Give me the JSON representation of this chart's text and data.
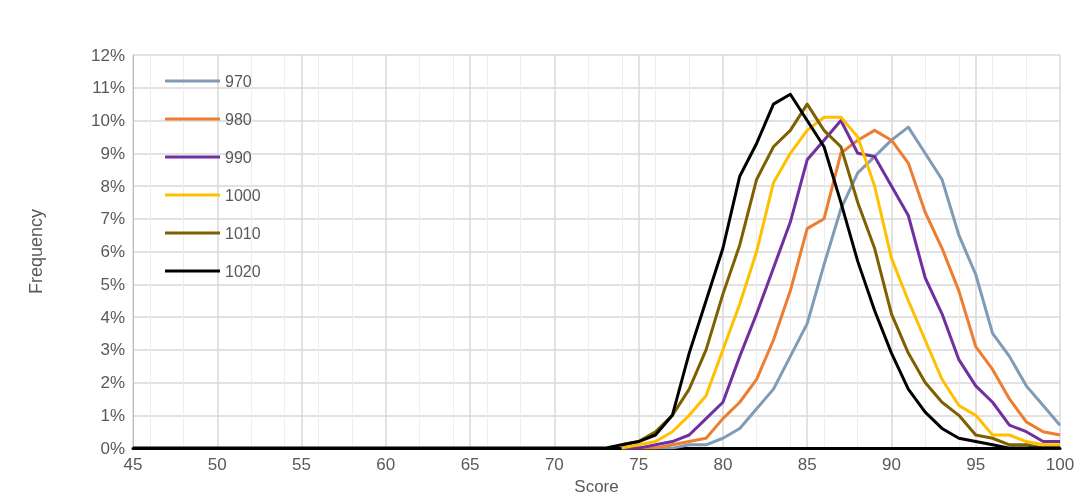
{
  "chart_data": {
    "type": "line",
    "xlabel": "Score",
    "ylabel": "Frequency",
    "x": [
      45,
      46,
      47,
      48,
      49,
      50,
      51,
      52,
      53,
      54,
      55,
      56,
      57,
      58,
      59,
      60,
      61,
      62,
      63,
      64,
      65,
      66,
      67,
      68,
      69,
      70,
      71,
      72,
      73,
      74,
      75,
      76,
      77,
      78,
      79,
      80,
      81,
      82,
      83,
      84,
      85,
      86,
      87,
      88,
      89,
      90,
      91,
      92,
      93,
      94,
      95,
      96,
      97,
      98,
      99,
      100
    ],
    "series": [
      {
        "name": "970",
        "color": "#7f9bb5",
        "values": [
          null,
          null,
          null,
          null,
          null,
          null,
          null,
          null,
          null,
          null,
          null,
          null,
          null,
          null,
          null,
          null,
          null,
          null,
          null,
          null,
          null,
          null,
          null,
          null,
          null,
          null,
          null,
          null,
          null,
          0,
          0,
          0,
          0,
          0.1,
          0.1,
          0.3,
          0.6,
          1.2,
          1.8,
          2.8,
          3.8,
          5.6,
          7.3,
          8.4,
          8.9,
          9.4,
          9.8,
          9.0,
          8.2,
          6.5,
          5.3,
          3.5,
          2.8,
          1.9,
          1.3,
          0.7
        ]
      },
      {
        "name": "980",
        "color": "#ed7d31",
        "values": [
          null,
          null,
          null,
          null,
          null,
          null,
          null,
          null,
          null,
          null,
          null,
          null,
          null,
          null,
          null,
          null,
          null,
          null,
          null,
          null,
          null,
          null,
          null,
          null,
          null,
          null,
          null,
          null,
          null,
          0,
          0,
          0,
          0.1,
          0.2,
          0.3,
          0.9,
          1.4,
          2.1,
          3.3,
          4.8,
          6.7,
          7.0,
          9.0,
          9.4,
          9.7,
          9.4,
          8.7,
          7.2,
          6.1,
          4.8,
          3.1,
          2.4,
          1.5,
          0.8,
          0.5,
          0.4
        ]
      },
      {
        "name": "990",
        "color": "#7030a0",
        "values": [
          null,
          null,
          null,
          null,
          null,
          null,
          null,
          null,
          null,
          null,
          null,
          null,
          null,
          null,
          null,
          null,
          null,
          null,
          null,
          null,
          null,
          null,
          null,
          null,
          null,
          null,
          null,
          null,
          null,
          0,
          0,
          0.1,
          0.2,
          0.4,
          0.9,
          1.4,
          2.8,
          4.1,
          5.5,
          6.9,
          8.8,
          9.4,
          10.0,
          9.0,
          8.9,
          8.0,
          7.1,
          5.2,
          4.1,
          2.7,
          1.9,
          1.4,
          0.7,
          0.5,
          0.2,
          0.2
        ]
      },
      {
        "name": "1000",
        "color": "#ffc000",
        "values": [
          null,
          null,
          null,
          null,
          null,
          null,
          null,
          null,
          null,
          null,
          null,
          null,
          null,
          null,
          null,
          null,
          null,
          null,
          null,
          null,
          null,
          null,
          null,
          null,
          null,
          null,
          null,
          null,
          null,
          0,
          0.1,
          0.2,
          0.5,
          1.0,
          1.6,
          3.0,
          4.4,
          6.0,
          8.1,
          9.0,
          9.7,
          10.1,
          10.1,
          9.5,
          8.0,
          5.8,
          4.5,
          3.3,
          2.1,
          1.3,
          1.0,
          0.4,
          0.4,
          0.2,
          0.1,
          0.1
        ]
      },
      {
        "name": "1010",
        "color": "#7f6000",
        "values": [
          null,
          null,
          null,
          null,
          null,
          null,
          null,
          null,
          null,
          null,
          null,
          null,
          null,
          null,
          null,
          null,
          null,
          null,
          null,
          null,
          null,
          null,
          null,
          null,
          null,
          null,
          null,
          null,
          null,
          0.1,
          0.2,
          0.5,
          1.0,
          1.8,
          3.0,
          4.7,
          6.2,
          8.2,
          9.2,
          9.7,
          10.5,
          9.7,
          9.2,
          7.5,
          6.1,
          4.1,
          2.9,
          2.0,
          1.4,
          1.0,
          0.4,
          0.3,
          0.1,
          0.1,
          0,
          0
        ]
      },
      {
        "name": "1020",
        "color": "#000000",
        "values": [
          0,
          0,
          0,
          0,
          0,
          0,
          0,
          0,
          0,
          0,
          0,
          0,
          0,
          0,
          0,
          0,
          0,
          0,
          0,
          0,
          0,
          0,
          0,
          0,
          0,
          0,
          0,
          0,
          0,
          0.1,
          0.2,
          0.4,
          1.0,
          2.9,
          4.5,
          6.1,
          8.3,
          9.3,
          10.5,
          10.8,
          10.0,
          9.2,
          7.5,
          5.7,
          4.2,
          2.9,
          1.8,
          1.1,
          0.6,
          0.3,
          0.2,
          0.1,
          0,
          0,
          0,
          0
        ]
      }
    ],
    "xlim": [
      45,
      100
    ],
    "xticks": [
      45,
      50,
      55,
      60,
      65,
      70,
      75,
      80,
      85,
      90,
      95,
      100
    ],
    "ylim": [
      0,
      12
    ],
    "yticks": [
      {
        "value": 0,
        "label": "0%"
      },
      {
        "value": 1,
        "label": "1%"
      },
      {
        "value": 2,
        "label": "2%"
      },
      {
        "value": 3,
        "label": "3%"
      },
      {
        "value": 4,
        "label": "4%"
      },
      {
        "value": 5,
        "label": "5%"
      },
      {
        "value": 6,
        "label": "6%"
      },
      {
        "value": 7,
        "label": "7%"
      },
      {
        "value": 8,
        "label": "8%"
      },
      {
        "value": 9,
        "label": "9%"
      },
      {
        "value": 10,
        "label": "10%"
      },
      {
        "value": 11,
        "label": "11%"
      },
      {
        "value": 12,
        "label": "12%"
      }
    ],
    "grid": true,
    "legend": "top left",
    "marker": "none"
  }
}
